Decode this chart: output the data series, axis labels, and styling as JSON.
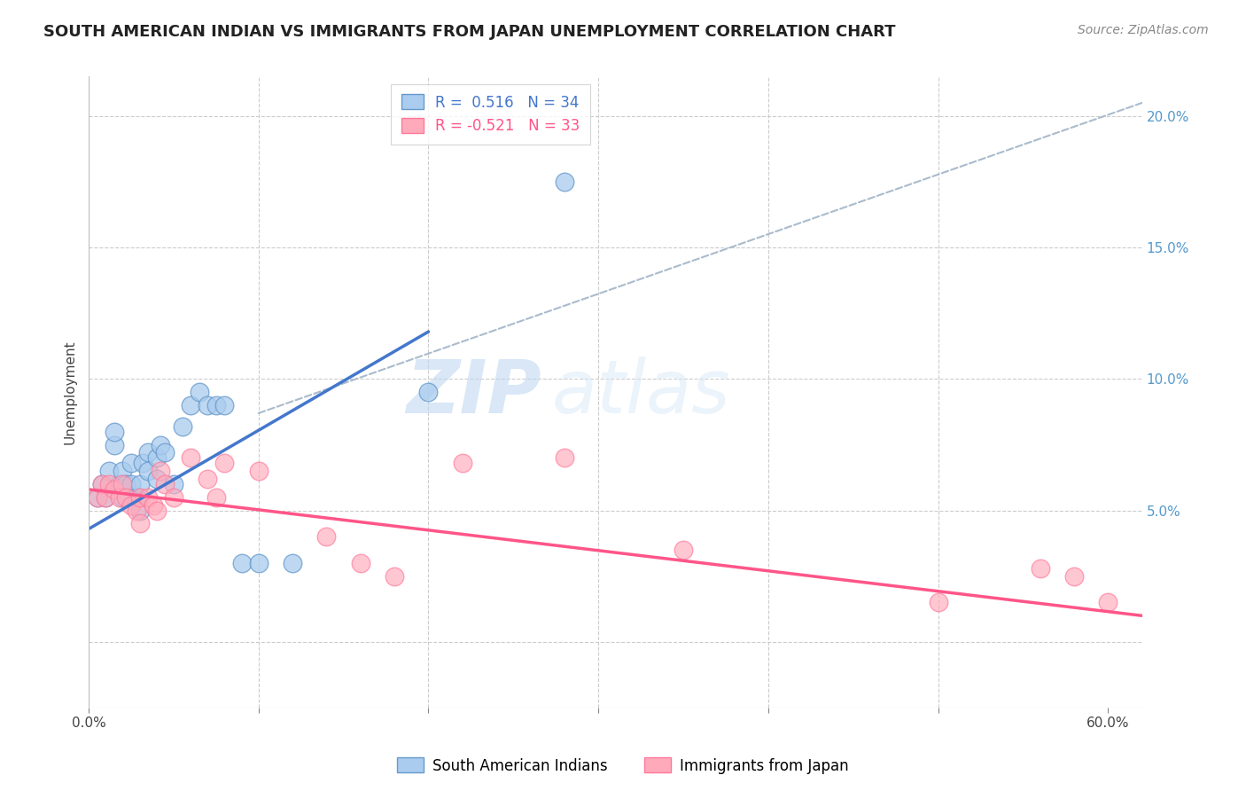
{
  "title": "SOUTH AMERICAN INDIAN VS IMMIGRANTS FROM JAPAN UNEMPLOYMENT CORRELATION CHART",
  "source": "Source: ZipAtlas.com",
  "ylabel": "Unemployment",
  "xlim": [
    0.0,
    0.62
  ],
  "ylim": [
    -0.025,
    0.215
  ],
  "yticks_right": [
    0.0,
    0.05,
    0.1,
    0.15,
    0.2
  ],
  "yticklabels_right": [
    "",
    "5.0%",
    "10.0%",
    "15.0%",
    "20.0%"
  ],
  "grid_color": "#cccccc",
  "background_color": "#ffffff",
  "watermark_zip": "ZIP",
  "watermark_atlas": "atlas",
  "blue_color": "#aaccee",
  "pink_color": "#ffaabb",
  "blue_edge_color": "#6699cc",
  "pink_edge_color": "#ff7799",
  "blue_line_color": "#4477cc",
  "pink_line_color": "#ff5588",
  "dashed_line_color": "#aabbcc",
  "blue_scatter_x": [
    0.005,
    0.008,
    0.01,
    0.012,
    0.015,
    0.015,
    0.018,
    0.02,
    0.02,
    0.022,
    0.025,
    0.025,
    0.028,
    0.03,
    0.03,
    0.032,
    0.035,
    0.035,
    0.04,
    0.04,
    0.042,
    0.045,
    0.05,
    0.055,
    0.06,
    0.065,
    0.07,
    0.075,
    0.08,
    0.09,
    0.1,
    0.12,
    0.2,
    0.28
  ],
  "blue_scatter_y": [
    0.055,
    0.06,
    0.055,
    0.065,
    0.075,
    0.08,
    0.06,
    0.055,
    0.065,
    0.06,
    0.06,
    0.068,
    0.055,
    0.06,
    0.05,
    0.068,
    0.065,
    0.072,
    0.07,
    0.062,
    0.075,
    0.072,
    0.06,
    0.082,
    0.09,
    0.095,
    0.09,
    0.09,
    0.09,
    0.03,
    0.03,
    0.03,
    0.095,
    0.175
  ],
  "pink_scatter_x": [
    0.005,
    0.008,
    0.01,
    0.012,
    0.015,
    0.018,
    0.02,
    0.022,
    0.025,
    0.028,
    0.03,
    0.03,
    0.035,
    0.038,
    0.04,
    0.042,
    0.045,
    0.05,
    0.06,
    0.07,
    0.075,
    0.08,
    0.1,
    0.14,
    0.16,
    0.18,
    0.22,
    0.28,
    0.35,
    0.5,
    0.56,
    0.58,
    0.6
  ],
  "pink_scatter_y": [
    0.055,
    0.06,
    0.055,
    0.06,
    0.058,
    0.055,
    0.06,
    0.055,
    0.052,
    0.05,
    0.055,
    0.045,
    0.055,
    0.052,
    0.05,
    0.065,
    0.06,
    0.055,
    0.07,
    0.062,
    0.055,
    0.068,
    0.065,
    0.04,
    0.03,
    0.025,
    0.068,
    0.07,
    0.035,
    0.015,
    0.028,
    0.025,
    0.015
  ],
  "blue_line_x": [
    0.0,
    0.2
  ],
  "blue_line_y": [
    0.043,
    0.118
  ],
  "pink_line_x": [
    0.0,
    0.62
  ],
  "pink_line_y": [
    0.058,
    0.01
  ],
  "dashed_line_x": [
    0.1,
    0.62
  ],
  "dashed_line_y": [
    0.087,
    0.205
  ],
  "title_fontsize": 13,
  "axis_label_fontsize": 11,
  "tick_fontsize": 11,
  "legend_fontsize": 12,
  "source_fontsize": 10
}
